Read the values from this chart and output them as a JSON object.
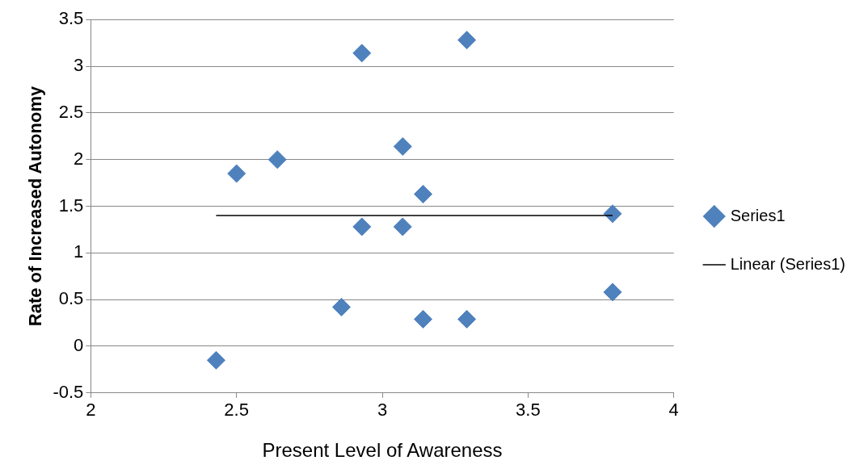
{
  "chart_data": {
    "type": "scatter",
    "xlabel": "Present Level of Awareness",
    "ylabel": "Rate of Increased Autonomy",
    "x": [
      2.43,
      2.5,
      2.64,
      2.86,
      2.93,
      2.93,
      3.07,
      3.07,
      3.14,
      3.14,
      3.29,
      3.29,
      3.79,
      3.79
    ],
    "series": [
      {
        "name": "Series1",
        "color": "#4f81bd",
        "marker": "diamond",
        "values": [
          -0.15,
          1.85,
          2.0,
          0.42,
          3.14,
          1.28,
          2.14,
          1.28,
          1.63,
          0.29,
          3.28,
          0.29,
          1.42,
          0.58
        ]
      },
      {
        "name": "Linear (Series1)",
        "type": "line",
        "color": "#000000",
        "marker": "none",
        "x": [
          2.43,
          3.79
        ],
        "values": [
          1.4,
          1.4
        ]
      }
    ],
    "xlim": [
      2,
      4
    ],
    "xticks": [
      2,
      2.5,
      3,
      3.5,
      4
    ],
    "ylim": [
      -0.5,
      3.5
    ],
    "yticks": [
      -0.5,
      0,
      0.5,
      1,
      1.5,
      2,
      2.5,
      3,
      3.5
    ],
    "grid": "y",
    "legend": "right"
  }
}
